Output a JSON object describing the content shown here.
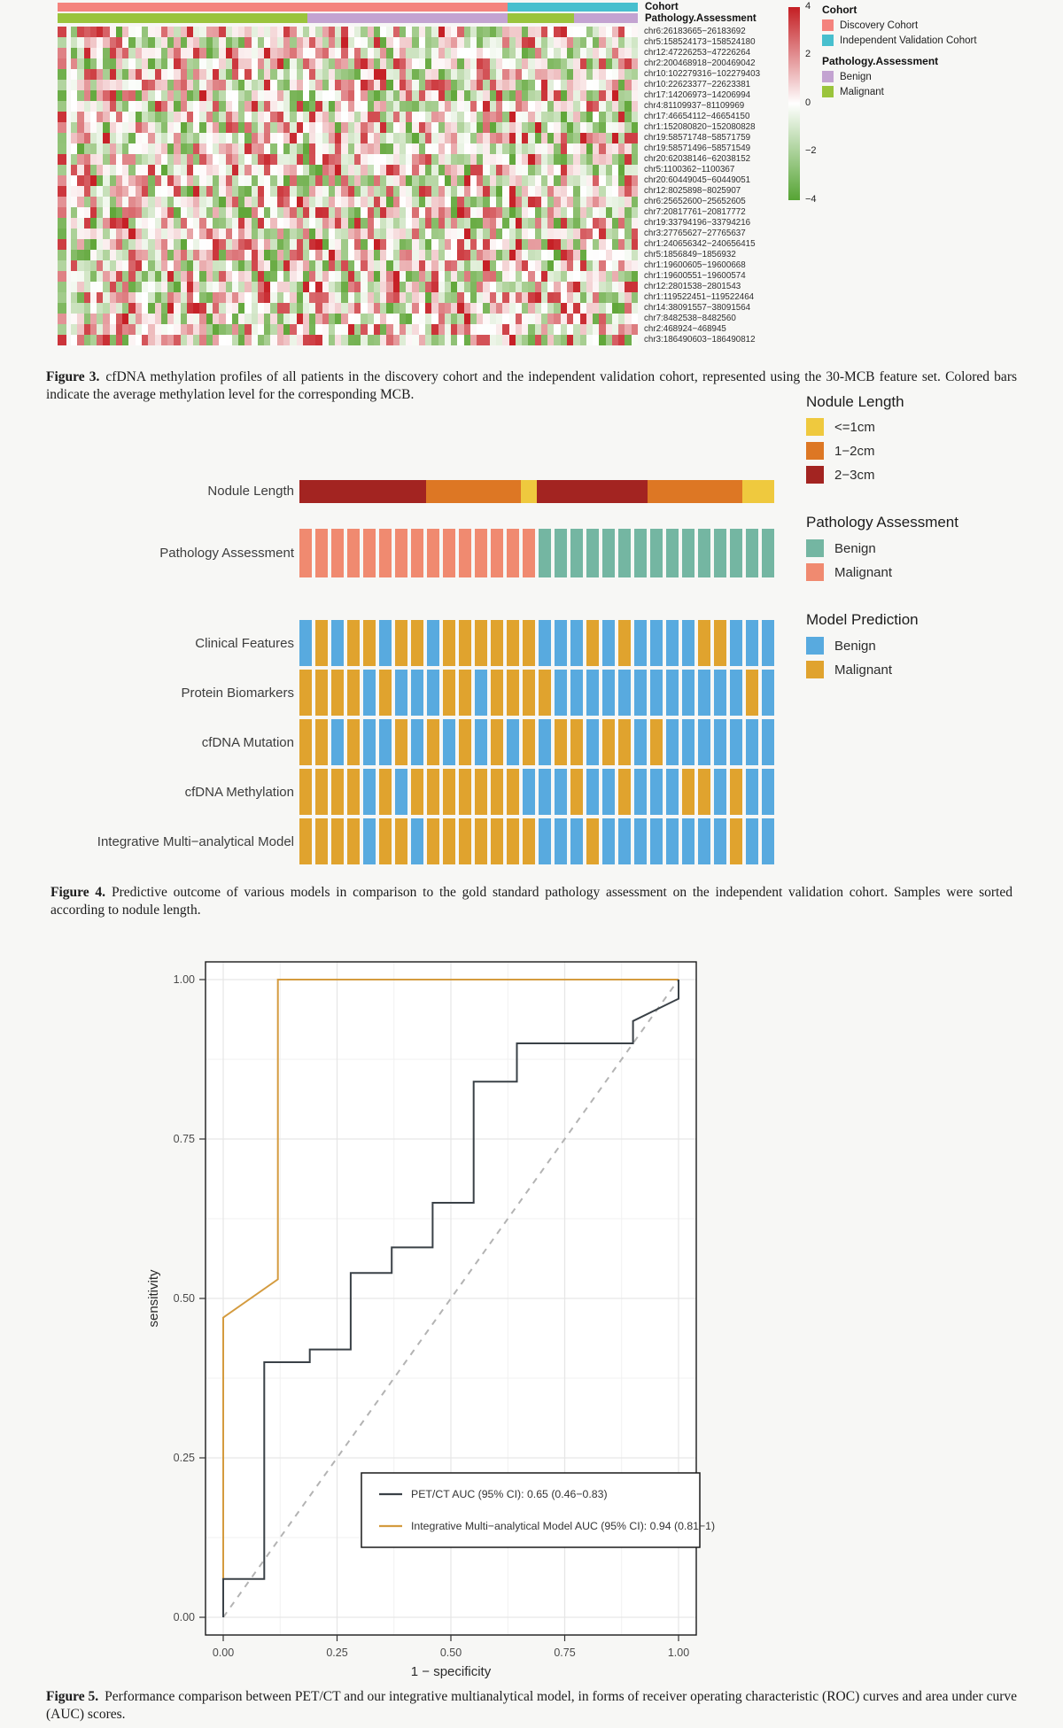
{
  "chart_data": [
    {
      "id": "figure3",
      "type": "heatmap",
      "caption_label": "Figure 3.",
      "caption_text": "cfDNA methylation profiles of all patients in the discovery cohort and the independent validation cohort, represented using the 30-MCB feature set. Colored bars indicate the average methylation level for the corresponding MCB.",
      "annotation_rows": [
        {
          "label": "Cohort",
          "segments": [
            {
              "name": "Discovery Cohort",
              "color": "#F4837D",
              "fraction": 0.775
            },
            {
              "name": "Independent Validation Cohort",
              "color": "#47BFCE",
              "fraction": 0.225
            }
          ]
        },
        {
          "label": "Pathology.Assessment",
          "segments": [
            {
              "name": "Malignant",
              "color": "#9AC43C",
              "fraction": 0.43
            },
            {
              "name": "Benign",
              "color": "#C3A3D1",
              "fraction": 0.345
            },
            {
              "name": "Malignant",
              "color": "#9AC43C",
              "fraction": 0.115
            },
            {
              "name": "Benign",
              "color": "#C3A3D1",
              "fraction": 0.11
            }
          ]
        }
      ],
      "row_labels": [
        "chr6:26183665−26183692",
        "chr5:158524173−158524180",
        "chr12:47226253−47226264",
        "chr2:200468918−200469042",
        "chr10:102279316−102279403",
        "chr10:22623377−22623381",
        "chr17:14206973−14206994",
        "chr4:81109937−81109969",
        "chr17:46654112−46654150",
        "chr1:152080820−152080828",
        "chr19:58571748−58571759",
        "chr19:58571496−58571549",
        "chr20:62038146−62038152",
        "chr5:1100362−1100367",
        "chr20:60449045−60449051",
        "chr12:8025898−8025907",
        "chr6:25652600−25652605",
        "chr7:20817761−20817772",
        "chr19:33794196−33794216",
        "chr3:27765627−27765637",
        "chr1:240656342−240656415",
        "chr5:1856849−1856932",
        "chr1:19600605−19600668",
        "chr1:19600551−19600574",
        "chr12:2801538−2801543",
        "chr1:119522451−119522464",
        "chr14:38091557−38091564",
        "chr7:8482538−8482560",
        "chr2:468924−468945",
        "chr3:186490603−186490812"
      ],
      "n_columns": 88,
      "colorscale": {
        "ticks": [
          "4",
          "2",
          "0",
          "−2",
          "−4"
        ],
        "max": 4,
        "min": -4,
        "top_color": "#C41E23",
        "mid_color": "#FFFFFF",
        "bottom_color": "#56A434"
      },
      "legend": {
        "cohort_title": "Cohort",
        "cohort_items": [
          {
            "label": "Discovery Cohort",
            "color": "#F4837D"
          },
          {
            "label": "Independent Validation Cohort",
            "color": "#47BFCE"
          }
        ],
        "pathology_title": "Pathology.Assessment",
        "pathology_items": [
          {
            "label": "Benign",
            "color": "#C3A3D1"
          },
          {
            "label": "Malignant",
            "color": "#9AC43C"
          }
        ]
      }
    },
    {
      "id": "figure4",
      "type": "heatmap",
      "caption_label": "Figure 4.",
      "caption_text": "Predictive outcome of various models in comparison to the gold standard pathology assessment on the independent validation cohort. Samples were sorted according to nodule length.",
      "n_samples": 30,
      "nodule_row_label": "Nodule Length",
      "nodule_segments": [
        {
          "label": "2−3cm",
          "color": "#A32421",
          "count": 8
        },
        {
          "label": "1−2cm",
          "color": "#DD7724",
          "count": 6
        },
        {
          "label": "<=1cm",
          "color": "#EFC93E",
          "count": 1
        },
        {
          "label": "2−3cm",
          "color": "#A32421",
          "count": 7
        },
        {
          "label": "1−2cm",
          "color": "#DD7724",
          "count": 6
        },
        {
          "label": "<=1cm",
          "color": "#EFC93E",
          "count": 2
        }
      ],
      "pathology_row_label": "Pathology Assessment",
      "pathology_pattern": "MMMMMMMMMMMMMMMBBBBBBBBBBBBBBB",
      "model_rows": [
        {
          "label": "Clinical Features",
          "pattern": "BOBOOBOOBOOOOOOBBBOBOBBBBOOBBB"
        },
        {
          "label": "Protein Biomarkers",
          "pattern": "OOOOBOBBBOOBOOOOBBBBBBBBBBBBOB"
        },
        {
          "label": "cfDNA Mutation",
          "pattern": "OOBOBBOBOBOBOBOBOOBOOBOBBBBBBB"
        },
        {
          "label": "cfDNA Methylation",
          "pattern": "OOOOBOBOOOOOOOBBBOBBOBBBOOBOBB"
        },
        {
          "label": "Integrative Multi−analytical Model",
          "pattern": "OOOOBOOBOOOOOOOBBBOBBBBBBBBOBB"
        }
      ],
      "tile_colors": {
        "M": "#F08A70",
        "B_path": "#74B6A2",
        "O": "#E0A32E",
        "B_model": "#58AADF"
      },
      "legends": [
        {
          "title": "Nodule Length",
          "items": [
            {
              "label": "<=1cm",
              "color": "#EFC93E"
            },
            {
              "label": "1−2cm",
              "color": "#DD7724"
            },
            {
              "label": "2−3cm",
              "color": "#A32421"
            }
          ]
        },
        {
          "title": "Pathology Assessment",
          "items": [
            {
              "label": "Benign",
              "color": "#74B6A2"
            },
            {
              "label": "Malignant",
              "color": "#F08A70"
            }
          ]
        },
        {
          "title": "Model Prediction",
          "items": [
            {
              "label": "Benign",
              "color": "#58AADF"
            },
            {
              "label": "Malignant",
              "color": "#E0A32E"
            }
          ]
        }
      ]
    },
    {
      "id": "figure5",
      "type": "line",
      "caption_label": "Figure 5.",
      "caption_text": "Performance comparison between PET/CT and our integrative multianalytical model, in forms of receiver operating characteristic (ROC) curves and area under curve (AUC) scores.",
      "xlabel": "1 − specificity",
      "ylabel": "sensitivity",
      "xlim": [
        0,
        1
      ],
      "ylim": [
        0,
        1
      ],
      "xticks": [
        "0.00",
        "0.25",
        "0.50",
        "0.75",
        "1.00"
      ],
      "yticks": [
        "0.00",
        "0.25",
        "0.50",
        "0.75",
        "1.00"
      ],
      "grid": true,
      "legend_position": "inside-bottom",
      "series": [
        {
          "name": "PET/CT AUC (95% CI): 0.65 (0.46−0.83)",
          "color": "#3A4147",
          "style": "solid",
          "points": [
            [
              0,
              0
            ],
            [
              0,
              0.06
            ],
            [
              0.09,
              0.06
            ],
            [
              0.09,
              0.4
            ],
            [
              0.19,
              0.4
            ],
            [
              0.19,
              0.42
            ],
            [
              0.28,
              0.42
            ],
            [
              0.28,
              0.54
            ],
            [
              0.37,
              0.54
            ],
            [
              0.37,
              0.58
            ],
            [
              0.46,
              0.58
            ],
            [
              0.46,
              0.65
            ],
            [
              0.55,
              0.65
            ],
            [
              0.55,
              0.84
            ],
            [
              0.645,
              0.84
            ],
            [
              0.645,
              0.9
            ],
            [
              0.9,
              0.9
            ],
            [
              0.9,
              0.935
            ],
            [
              1.0,
              0.97
            ],
            [
              1.0,
              1.0
            ]
          ]
        },
        {
          "name": "Integrative Multi−analytical Model AUC (95% CI): 0.94 (0.81−1)",
          "color": "#D49B3F",
          "style": "solid",
          "points": [
            [
              0,
              0.06
            ],
            [
              0,
              0.47
            ],
            [
              0.12,
              0.53
            ],
            [
              0.12,
              1.0
            ],
            [
              1.0,
              1.0
            ]
          ]
        },
        {
          "name": "reference diagonal",
          "color": "#B3B3B3",
          "style": "dashed",
          "points": [
            [
              0,
              0
            ],
            [
              1,
              1
            ]
          ]
        }
      ]
    }
  ]
}
